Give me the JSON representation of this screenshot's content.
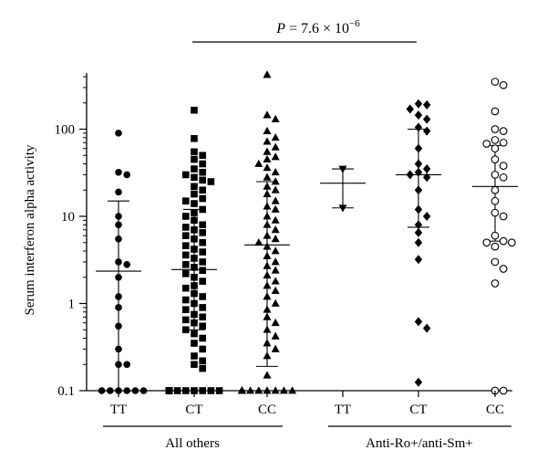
{
  "chart_data": {
    "type": "scatter",
    "subtype": "dot-plot with median and interquartile range bars",
    "ylabel": "Serum interferon alpha activity",
    "yscale": "log",
    "ylim": [
      0.1,
      500
    ],
    "yticks": [
      {
        "value": 0.1,
        "label": "0.1"
      },
      {
        "value": 1,
        "label": "1"
      },
      {
        "value": 10,
        "label": "10"
      },
      {
        "value": 100,
        "label": "100"
      }
    ],
    "annotation": {
      "text_prefix": "P = 7.6 × 10",
      "exponent": "−6",
      "spans": [
        "All others",
        "Anti-Ro+/anti-Sm+"
      ]
    },
    "groups": [
      {
        "label": "All others",
        "categories": [
          "TT",
          "CT",
          "CC"
        ]
      },
      {
        "label": "Anti-Ro+/anti-Sm+",
        "categories": [
          "TT",
          "CT",
          "CC"
        ]
      }
    ],
    "series": [
      {
        "group": "All others",
        "category": "TT",
        "marker": "filled-circle",
        "median": 2.35,
        "q1": 0.1,
        "q3": 15,
        "values": [
          90,
          32,
          30,
          19,
          10,
          8,
          5.5,
          3,
          2.8,
          2,
          1.2,
          0.9,
          0.55,
          0.3,
          0.2,
          0.2,
          0.1,
          0.1,
          0.1,
          0.1,
          0.1,
          0.1
        ]
      },
      {
        "group": "All others",
        "category": "CT",
        "marker": "filled-square",
        "median": 2.45,
        "q1": 0.5,
        "q3": 12,
        "values": [
          165,
          78,
          55,
          50,
          45,
          40,
          35,
          32,
          30,
          28,
          26,
          25,
          22,
          20,
          18,
          16,
          15,
          14,
          12,
          11,
          10,
          9,
          8,
          7.5,
          7,
          6.5,
          6,
          5.5,
          5,
          4.6,
          4.2,
          3.9,
          3.6,
          3.3,
          3,
          2.8,
          2.6,
          2.4,
          2.2,
          2,
          1.8,
          1.6,
          1.5,
          1.3,
          1.2,
          1.1,
          1,
          0.9,
          0.85,
          0.75,
          0.7,
          0.65,
          0.6,
          0.55,
          0.5,
          0.45,
          0.4,
          0.35,
          0.3,
          0.25,
          0.22,
          0.2,
          0.18,
          0.1,
          0.1,
          0.1,
          0.1,
          0.1,
          0.1,
          0.1,
          0.1,
          0.1,
          0.1,
          0.1,
          0.1,
          0.1,
          0.1
        ]
      },
      {
        "group": "All others",
        "category": "CC",
        "marker": "filled-triangle",
        "median": 4.7,
        "q1": 0.19,
        "q3": 25,
        "values": [
          420,
          145,
          130,
          95,
          80,
          72,
          62,
          55,
          48,
          45,
          40,
          36,
          32,
          28,
          25,
          22,
          20,
          18,
          15,
          13,
          12,
          10,
          9,
          8,
          7,
          6,
          5.5,
          5,
          4.5,
          4,
          3.5,
          3,
          2.7,
          2.4,
          2.1,
          1.8,
          1.6,
          1.4,
          1.2,
          1,
          0.85,
          0.7,
          0.6,
          0.5,
          0.42,
          0.35,
          0.3,
          0.25,
          0.15,
          0.1,
          0.1,
          0.1,
          0.1,
          0.1,
          0.1,
          0.1,
          0.1,
          0.1,
          0.1,
          0.1,
          0.1,
          0.1
        ]
      },
      {
        "group": "Anti-Ro+/anti-Sm+",
        "category": "TT",
        "marker": "filled-triangle-down",
        "median": 24,
        "q1": 12.5,
        "q3": 35,
        "values": [
          35,
          12.5
        ]
      },
      {
        "group": "Anti-Ro+/anti-Sm+",
        "category": "CT",
        "marker": "filled-diamond",
        "median": 30,
        "q1": 7.5,
        "q3": 100,
        "values": [
          195,
          190,
          170,
          145,
          130,
          105,
          95,
          60,
          40,
          35,
          32,
          30,
          28,
          20,
          12,
          10,
          8,
          6.5,
          5,
          3.2,
          0.62,
          0.52,
          0.125
        ]
      },
      {
        "group": "Anti-Ro+/anti-Sm+",
        "category": "CC",
        "marker": "open-circle",
        "median": 22,
        "q1": 5.2,
        "q3": 65,
        "values": [
          350,
          320,
          160,
          100,
          95,
          75,
          70,
          68,
          60,
          45,
          38,
          30,
          28,
          20,
          15,
          11,
          10,
          6,
          5.2,
          5,
          5,
          4.5,
          3,
          2.5,
          1.7,
          0.1,
          0.1
        ]
      }
    ]
  }
}
